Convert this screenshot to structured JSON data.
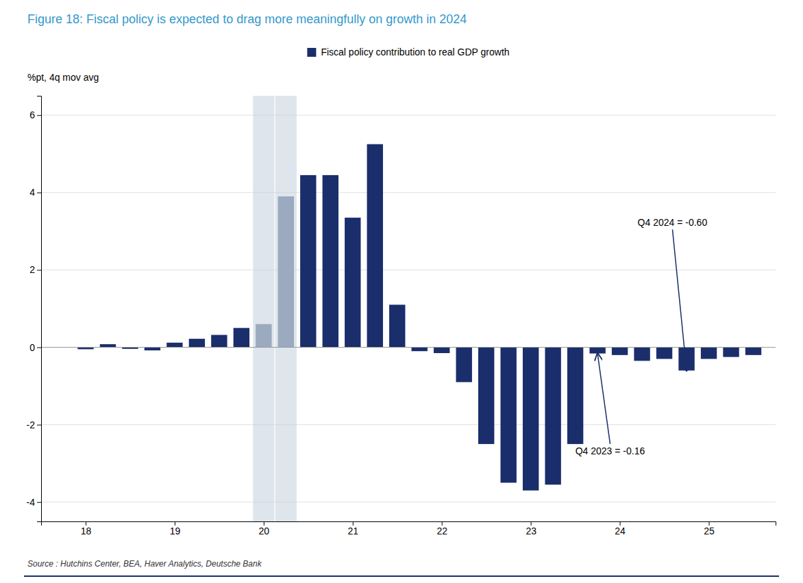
{
  "chart_data": {
    "type": "bar",
    "title": "Figure 18: Fiscal policy is expected to drag more meaningfully on growth in 2024",
    "y_label": "%pt, 4q mov avg",
    "source": "Source : Hutchins Center, BEA, Haver Analytics, Deutsche Bank",
    "x": [
      18.0,
      18.25,
      18.5,
      18.75,
      19.0,
      19.25,
      19.5,
      19.75,
      20.0,
      20.25,
      20.5,
      20.75,
      21.0,
      21.25,
      21.5,
      21.75,
      22.0,
      22.25,
      22.5,
      22.75,
      23.0,
      23.25,
      23.5,
      23.75,
      24.0,
      24.25,
      24.5,
      24.75,
      25.0,
      25.25,
      25.5
    ],
    "series": [
      {
        "name": "Fiscal policy contribution to real GDP growth",
        "color": "#1a2e6c",
        "colors": [
          "#1a2e6c",
          "#1a2e6c",
          "#1a2e6c",
          "#1a2e6c",
          "#1a2e6c",
          "#1a2e6c",
          "#1a2e6c",
          "#1a2e6c",
          "#9baabf",
          "#9baabf",
          "#1a2e6c",
          "#1a2e6c",
          "#1a2e6c",
          "#1a2e6c",
          "#1a2e6c",
          "#1a2e6c",
          "#1a2e6c",
          "#1a2e6c",
          "#1a2e6c",
          "#1a2e6c",
          "#1a2e6c",
          "#1a2e6c",
          "#1a2e6c",
          "#1a2e6c",
          "#1a2e6c",
          "#1a2e6c",
          "#1a2e6c",
          "#1a2e6c",
          "#1a2e6c",
          "#1a2e6c",
          "#1a2e6c"
        ],
        "values": [
          -0.05,
          0.08,
          -0.04,
          -0.08,
          0.12,
          0.22,
          0.32,
          0.5,
          0.6,
          3.9,
          4.45,
          4.45,
          3.35,
          5.25,
          1.1,
          -0.1,
          -0.15,
          -0.9,
          -2.5,
          -3.5,
          -3.7,
          -3.55,
          -2.5,
          -0.16,
          -0.2,
          -0.35,
          -0.3,
          -0.6,
          -0.3,
          -0.25,
          -0.2
        ]
      }
    ],
    "shaded_ranges": [
      [
        19.88,
        20.12
      ],
      [
        20.13,
        20.37
      ]
    ],
    "annotations": [
      {
        "text": "Q4 2024 = -0.60",
        "x": 24.75,
        "y": -0.6,
        "text_x": 24.2,
        "text_y": 3.2
      },
      {
        "text": "Q4 2023 = -0.16",
        "x": 23.75,
        "y": -0.16,
        "text_x": 23.5,
        "text_y": -2.7
      }
    ],
    "xlim": [
      17.5,
      25.75
    ],
    "ylim": [
      -4.5,
      6.5
    ],
    "xticks": [
      18,
      19,
      20,
      21,
      22,
      23,
      24,
      25
    ],
    "yticks": [
      -4,
      -2,
      0,
      2,
      4,
      6
    ],
    "grid": true,
    "legend": "top"
  }
}
